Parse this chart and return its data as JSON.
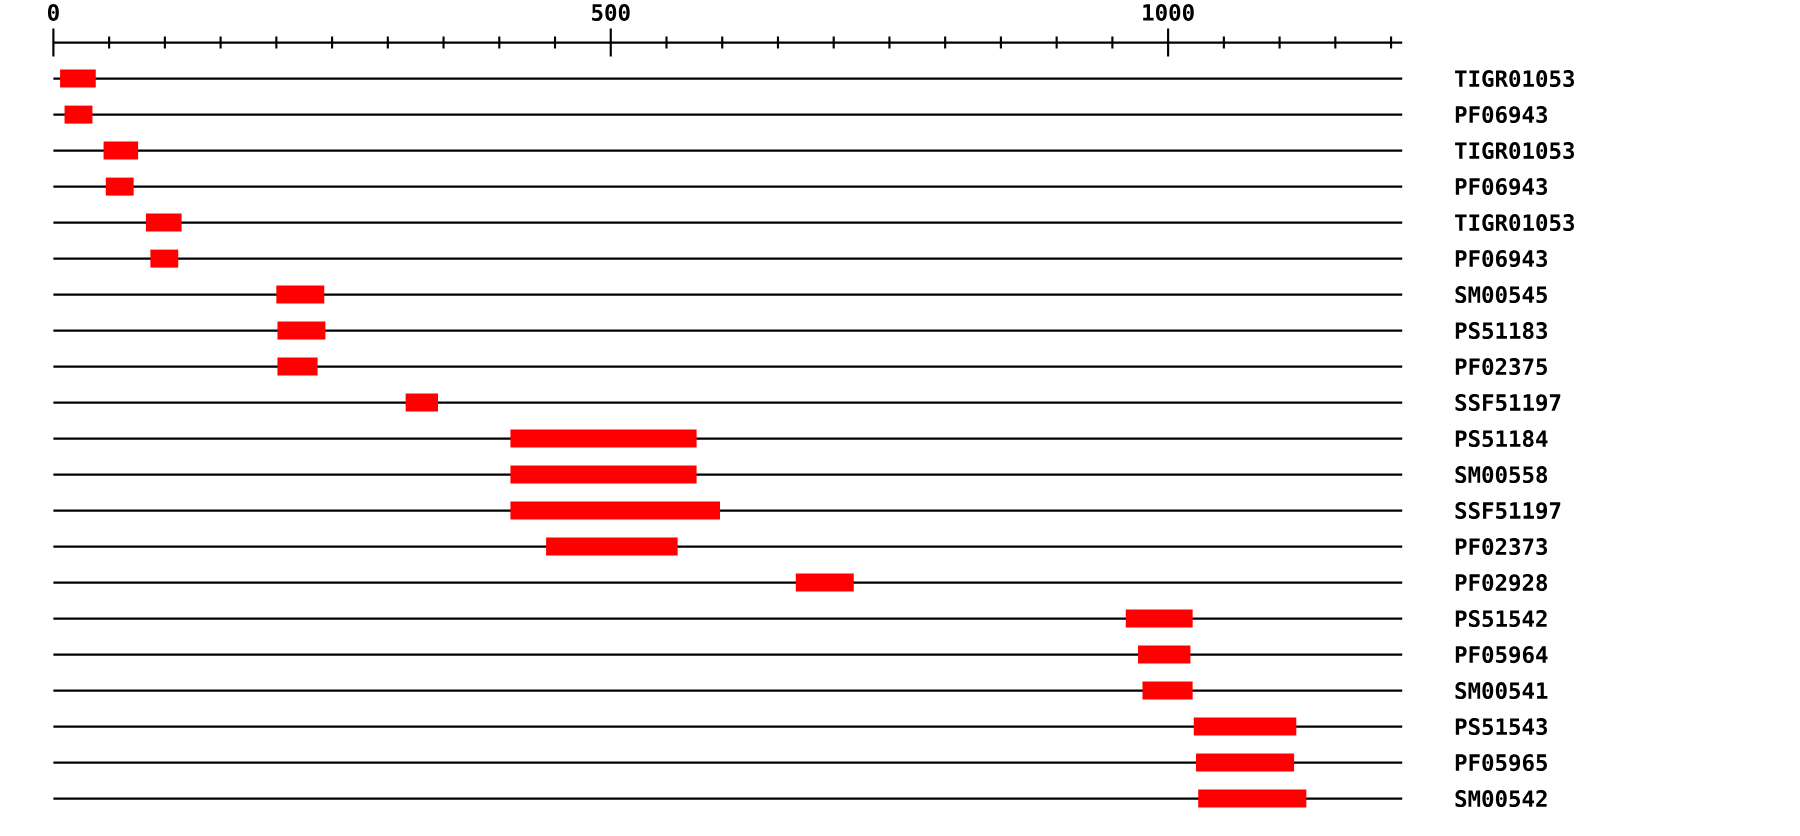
{
  "chart_data": {
    "type": "bar",
    "orientation": "horizontal",
    "categories": [
      "TIGR01053",
      "PF06943",
      "TIGR01053",
      "PF06943",
      "TIGR01053",
      "PF06943",
      "SM00545",
      "PS51183",
      "PF02375",
      "SSF51197",
      "PS51184",
      "SM00558",
      "SSF51197",
      "PF02373",
      "PF02928",
      "PS51542",
      "PF05964",
      "SM00541",
      "PS51543",
      "PF05965",
      "SM00542"
    ],
    "base": [
      6,
      10,
      45,
      47,
      83,
      87,
      200,
      201,
      201,
      316,
      410,
      410,
      410,
      442,
      666,
      962,
      973,
      977,
      1023,
      1025,
      1027
    ],
    "values": [
      32,
      25,
      31,
      25,
      32,
      25,
      43,
      43,
      36,
      29,
      167,
      167,
      188,
      118,
      52,
      60,
      47,
      45,
      92,
      88,
      97
    ],
    "color": "#ff0000",
    "xlim": [
      0,
      1210
    ],
    "xticks": [
      0,
      {
        "value": 50,
        "label": null
      },
      {
        "value": 100,
        "label": null
      },
      {
        "value": 150,
        "label": null
      },
      {
        "value": 200,
        "label": null
      },
      {
        "value": 250,
        "label": null
      },
      {
        "value": 300,
        "label": null
      },
      {
        "value": 350,
        "label": null
      },
      {
        "value": 400,
        "label": null
      },
      {
        "value": 450,
        "label": null
      },
      500,
      {
        "value": 550,
        "label": null
      },
      {
        "value": 600,
        "label": null
      },
      {
        "value": 650,
        "label": null
      },
      {
        "value": 700,
        "label": null
      },
      {
        "value": 750,
        "label": null
      },
      {
        "value": 800,
        "label": null
      },
      {
        "value": 850,
        "label": null
      },
      {
        "value": 900,
        "label": null
      },
      {
        "value": 950,
        "label": null
      },
      1000,
      {
        "value": 1050,
        "label": null
      },
      {
        "value": 1100,
        "label": null
      },
      {
        "value": 1150,
        "label": null
      },
      {
        "value": 1200,
        "label": null
      }
    ],
    "grid": "y"
  }
}
